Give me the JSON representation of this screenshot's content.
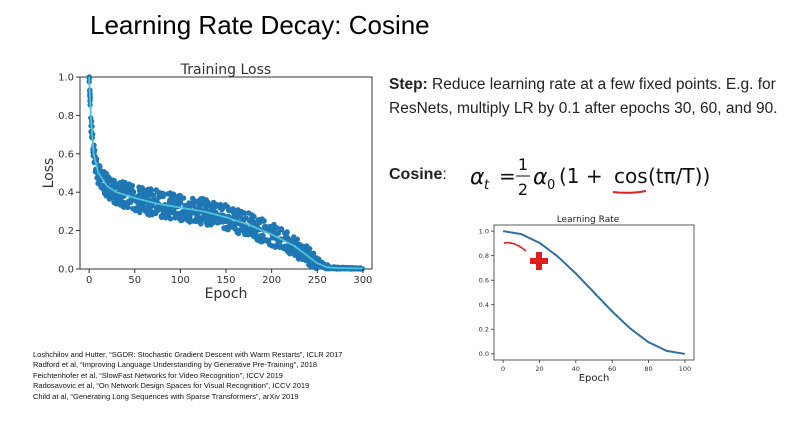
{
  "slide": {
    "title": "Learning Rate Decay: Cosine",
    "step_label": "Step:",
    "step_text": " Reduce learning rate at a few fixed points. E.g. for ResNets, multiply LR by 0.1 after epochs 30, 60, and 90.",
    "cosine_label": "Cosine",
    "cosine_colon": ":",
    "formula": {
      "lhs": "α",
      "lhs_sub": "t",
      "equals": "=",
      "frac_num": "1",
      "frac_den": "2",
      "alpha0": "α",
      "alpha0_sub": "0",
      "body_open": "(1 + ",
      "cos": "cos",
      "arg": "(tπ/T))"
    },
    "references": [
      "Loshchilov and Hutter, “SGDR: Stochastic Gradient Descent with Warm Restarts”, ICLR 2017",
      "Radford et al, “Improving Language Understanding by Generative Pre-Training”, 2018",
      "Feichtenhofer et al, “SlowFast Networks for Video Recognition”, ICCV 2019",
      "Radosavovic et al, “On Network Design Spaces for Visual Recognition”, ICCV 2019",
      "Child at al, “Generating Long Sequences with Sparse Transformers”, arXiv 2019"
    ],
    "annotation_color": "#e02020"
  },
  "chart_data": [
    {
      "type": "scatter",
      "title": "Training Loss",
      "xlabel": "Epoch",
      "ylabel": "Loss",
      "xlim": [
        -10,
        310
      ],
      "ylim": [
        0,
        1.0
      ],
      "xticks": [
        0,
        50,
        100,
        150,
        200,
        250,
        300
      ],
      "yticks": [
        0.0,
        0.2,
        0.4,
        0.6,
        0.8,
        1.0
      ],
      "grid": false,
      "colors": {
        "points": "#1f77b4",
        "mean_line": "#4fc3d9"
      },
      "mean_curve": {
        "x": [
          0,
          2,
          5,
          10,
          20,
          30,
          50,
          75,
          100,
          125,
          150,
          175,
          200,
          225,
          250,
          260,
          270,
          290,
          300
        ],
        "y": [
          1.0,
          0.78,
          0.6,
          0.5,
          0.43,
          0.4,
          0.37,
          0.34,
          0.32,
          0.3,
          0.27,
          0.23,
          0.18,
          0.12,
          0.03,
          0.01,
          0.005,
          0.003,
          0.003
        ]
      },
      "band_halfwidth": {
        "x": [
          0,
          5,
          20,
          50,
          100,
          150,
          200,
          240,
          255,
          270,
          300
        ],
        "y": [
          0.05,
          0.06,
          0.06,
          0.07,
          0.07,
          0.065,
          0.06,
          0.05,
          0.02,
          0.005,
          0.003
        ]
      }
    },
    {
      "type": "line",
      "title": "Learning Rate",
      "xlabel": "Epoch",
      "ylabel": "",
      "xlim": [
        -5,
        105
      ],
      "ylim": [
        -0.05,
        1.05
      ],
      "xticks": [
        0,
        20,
        40,
        60,
        80,
        100
      ],
      "yticks": [
        0.0,
        0.2,
        0.4,
        0.6,
        0.8,
        1.0
      ],
      "grid": false,
      "colors": {
        "line": "#2f6f9f"
      },
      "x": [
        0,
        10,
        20,
        30,
        40,
        50,
        60,
        70,
        80,
        90,
        100
      ],
      "y": [
        1.0,
        0.976,
        0.905,
        0.794,
        0.655,
        0.5,
        0.345,
        0.206,
        0.095,
        0.024,
        0.0
      ]
    }
  ]
}
